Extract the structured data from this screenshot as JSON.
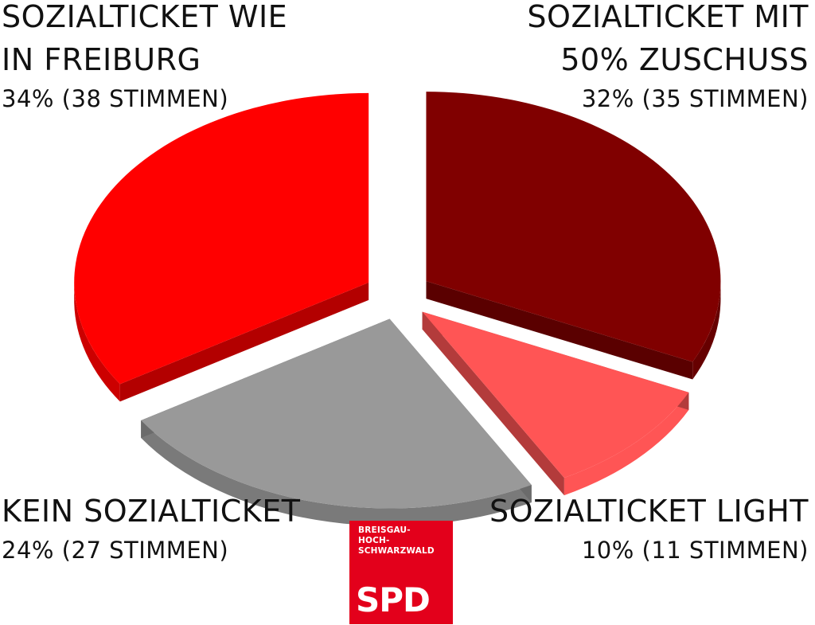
{
  "chart_data": {
    "type": "pie",
    "style": "3d-exploded",
    "slices": [
      {
        "name": "SOZIALTICKET WIE IN FREIBURG",
        "name_lines": [
          "SOZIALTICKET WIE",
          "IN FREIBURG"
        ],
        "percent": 34,
        "votes": 38,
        "value_label": "34% (38 STIMMEN)",
        "color": "#ff0000"
      },
      {
        "name": "SOZIALTICKET MIT 50% ZUSCHUSS",
        "name_lines": [
          "SOZIALTICKET MIT",
          "50% ZUSCHUSS"
        ],
        "percent": 32,
        "votes": 35,
        "value_label": "32% (35 STIMMEN)",
        "color": "#800000"
      },
      {
        "name": "SOZIALTICKET LIGHT",
        "name_lines": [
          "SOZIALTICKET LIGHT"
        ],
        "percent": 10,
        "votes": 11,
        "value_label": "10% (11 STIMMEN)",
        "color": "#ff5555"
      },
      {
        "name": "KEIN SOZIALTICKET",
        "name_lines": [
          "KEIN SOZIALTICKET"
        ],
        "percent": 24,
        "votes": 27,
        "value_label": "24% (27 STIMMEN)",
        "color": "#999999"
      }
    ],
    "legend": "none",
    "title": ""
  },
  "labels": {
    "freiburg": {
      "line1": "SOZIALTICKET WIE",
      "line2": "IN FREIBURG",
      "pct": "34% (38 STIMMEN)"
    },
    "zuschuss": {
      "line1": "SOZIALTICKET MIT",
      "line2": "50% ZUSCHUSS",
      "pct": "32% (35 STIMMEN)"
    },
    "kein": {
      "line1": "KEIN SOZIALTICKET",
      "pct": "24% (27 STIMMEN)"
    },
    "light": {
      "line1": "SOZIALTICKET LIGHT",
      "pct": "10% (11 STIMMEN)"
    }
  },
  "logo": {
    "region_lines": [
      "BREISGAU-",
      "HOCH-",
      "SCHWARZWALD"
    ],
    "brand": "SPD",
    "color": "#e3001b"
  }
}
